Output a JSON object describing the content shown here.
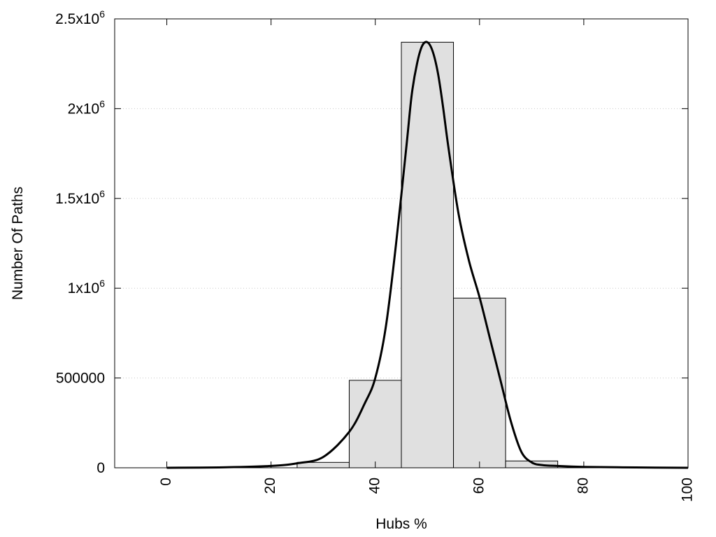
{
  "chart_data": {
    "type": "bar",
    "xlabel": "Hubs %",
    "ylabel": "Number Of Paths",
    "xlim": [
      -10,
      100
    ],
    "ylim": [
      0,
      2500000
    ],
    "grid": "horizontal dotted",
    "legend": "none",
    "x_ticks": [
      {
        "value": 0,
        "label": "0"
      },
      {
        "value": 20,
        "label": "20"
      },
      {
        "value": 40,
        "label": "40"
      },
      {
        "value": 60,
        "label": "60"
      },
      {
        "value": 80,
        "label": "80"
      },
      {
        "value": 100,
        "label": "100"
      }
    ],
    "y_ticks": [
      {
        "value": 0,
        "base": "0",
        "exp": ""
      },
      {
        "value": 500000,
        "base": "500000",
        "exp": ""
      },
      {
        "value": 1000000,
        "base": "1x10",
        "exp": "6"
      },
      {
        "value": 1500000,
        "base": "1.5x10",
        "exp": "6"
      },
      {
        "value": 2000000,
        "base": "2x10",
        "exp": "6"
      },
      {
        "value": 2500000,
        "base": "2.5x10",
        "exp": "6"
      }
    ],
    "bins": [
      {
        "from": 25,
        "to": 35,
        "value": 30000
      },
      {
        "from": 35,
        "to": 45,
        "value": 487000
      },
      {
        "from": 45,
        "to": 55,
        "value": 2370000
      },
      {
        "from": 55,
        "to": 65,
        "value": 945000
      },
      {
        "from": 65,
        "to": 75,
        "value": 38000
      }
    ],
    "fit_curve": {
      "x": [
        0,
        10,
        20,
        25,
        30,
        35,
        38,
        40,
        42,
        44,
        46,
        47,
        48,
        49,
        50,
        51,
        52,
        53,
        54,
        56,
        58,
        60,
        62,
        64,
        66,
        68,
        70,
        72,
        75,
        80,
        90,
        100
      ],
      "y": [
        0,
        2000,
        10000,
        25000,
        60000,
        200000,
        360000,
        500000,
        780000,
        1250000,
        1800000,
        2080000,
        2250000,
        2350000,
        2370000,
        2320000,
        2200000,
        2010000,
        1790000,
        1410000,
        1150000,
        950000,
        720000,
        490000,
        260000,
        90000,
        30000,
        15000,
        10000,
        5000,
        2000,
        0
      ]
    },
    "colors": {
      "bar_fill": "#e0e0e0",
      "bar_stroke": "#000000",
      "curve": "#000000",
      "grid": "#c8c8c8"
    }
  }
}
